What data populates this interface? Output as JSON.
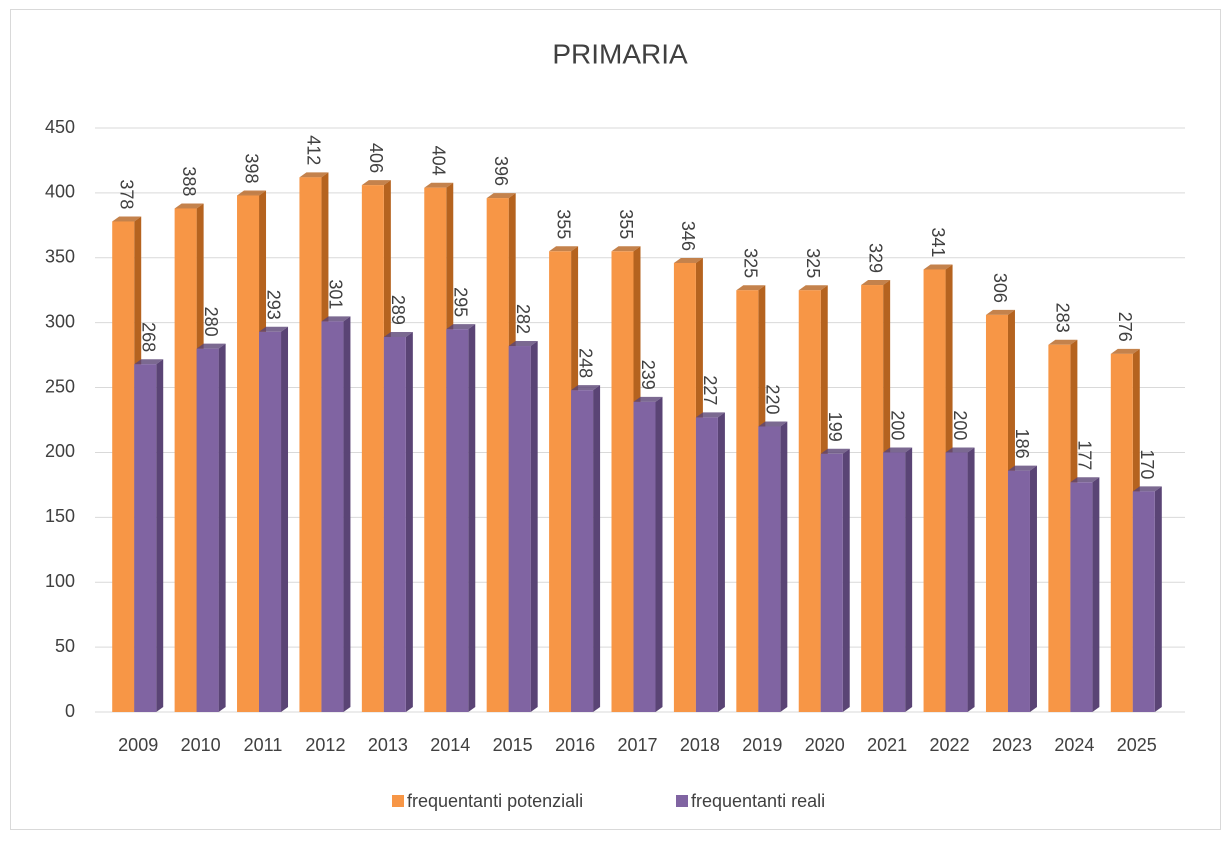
{
  "chart_data": {
    "type": "bar",
    "title": "PRIMARIA",
    "categories": [
      "2009",
      "2010",
      "2011",
      "2012",
      "2013",
      "2014",
      "2015",
      "2016",
      "2017",
      "2018",
      "2019",
      "2020",
      "2021",
      "2022",
      "2023",
      "2024",
      "2025"
    ],
    "series": [
      {
        "name": "frequentanti potenziali",
        "color": "#f79646",
        "values": [
          378,
          388,
          398,
          412,
          406,
          404,
          396,
          355,
          355,
          346,
          325,
          325,
          329,
          341,
          306,
          283,
          276
        ]
      },
      {
        "name": "frequentanti reali",
        "color": "#8064a2",
        "values": [
          268,
          280,
          293,
          301,
          289,
          295,
          282,
          248,
          239,
          227,
          220,
          199,
          200,
          200,
          186,
          177,
          170
        ]
      }
    ],
    "ylim": [
      0,
      450
    ],
    "yticks": [
      0,
      50,
      100,
      150,
      200,
      250,
      300,
      350,
      400,
      450
    ],
    "grid": true,
    "legend": "bottom"
  }
}
